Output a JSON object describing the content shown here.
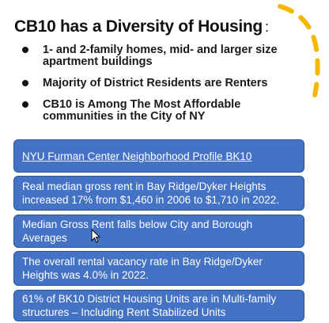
{
  "slide": {
    "title": "CB10 has a Diversity of Housing",
    "title_colon": ":",
    "bullets": [
      "1- and 2-family homes, mid- and larger size apartment buildings",
      "Majority of District Residents are Renters",
      "CB10 is Among The Most Affordable communities in the City of NY"
    ],
    "boxes": [
      "NYU Furman Center Neighborhood Profile BK10",
      "Real median gross rent in Bay Ridge/Dyker Heights increased 17% from $1,460 in 2006 to $1,710 in 2022.",
      "Median Gross Rent falls below City and Borough Averages",
      "The overall rental vacancy rate in Bay Ridge/Dyker Heights was 4.0% in 2022.",
      "61% of BK10 District Housing Units are in Multi-family structures – Including Rent Stabilized Units"
    ]
  },
  "colors": {
    "box_fill": "#4472c4",
    "decoration": "#f5b800"
  },
  "icons": {
    "decoration": "dashed-arc-icon",
    "pointer": "mouse-pointer-icon"
  }
}
